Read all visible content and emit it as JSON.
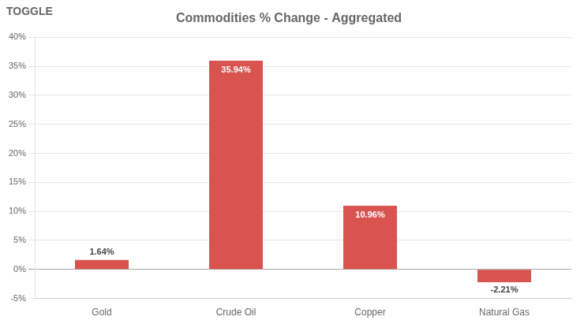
{
  "chart_data": {
    "type": "bar",
    "title": "Commodities % Change - Aggregated",
    "categories": [
      "Gold",
      "Crude Oil",
      "Copper",
      "Natural Gas"
    ],
    "values": [
      1.64,
      35.94,
      10.96,
      -2.21
    ],
    "value_labels": [
      "1.64%",
      "35.94%",
      "10.96%",
      "-2.21%"
    ],
    "data_labels": true,
    "color": "#d9534f",
    "ylim": [
      -5,
      40
    ],
    "yticks": [
      {
        "value": -5,
        "label": "-5%"
      },
      {
        "value": 0,
        "label": "0%"
      },
      {
        "value": 5,
        "label": "5%"
      },
      {
        "value": 10,
        "label": "10%"
      },
      {
        "value": 15,
        "label": "15%"
      },
      {
        "value": 20,
        "label": "20%"
      },
      {
        "value": 25,
        "label": "25%"
      },
      {
        "value": 30,
        "label": "30%"
      },
      {
        "value": 35,
        "label": "35%"
      },
      {
        "value": 40,
        "label": "40%"
      }
    ],
    "grid": true,
    "annotations": [
      "TOGGLE"
    ]
  }
}
